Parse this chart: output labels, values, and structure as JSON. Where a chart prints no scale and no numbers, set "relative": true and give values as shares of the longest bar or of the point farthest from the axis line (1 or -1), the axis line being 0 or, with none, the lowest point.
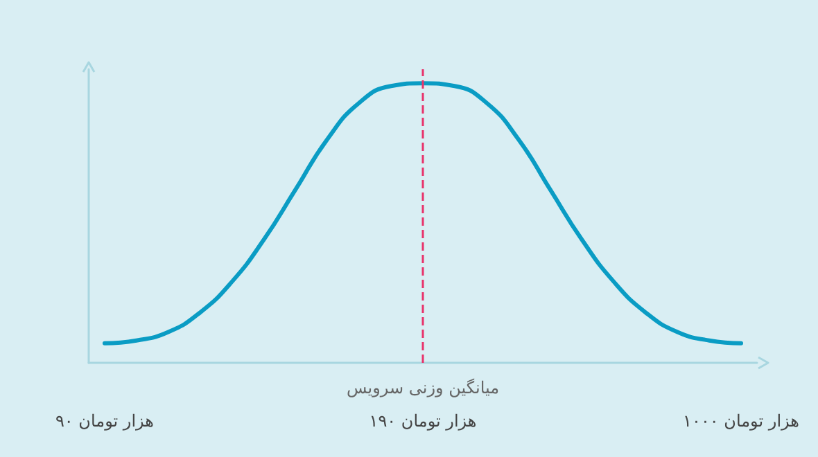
{
  "chart_data": {
    "type": "line",
    "relative": true,
    "marker": "none",
    "grid": false,
    "categories": [
      "۹۰ هزار تومان",
      null,
      null,
      null,
      null,
      null,
      null,
      null,
      null,
      null,
      "۱۹۰ هزار تومان",
      null,
      null,
      null,
      null,
      null,
      null,
      null,
      null,
      null,
      "۱۰۰۰ هزار تومان"
    ],
    "series": [
      {
        "color": "#0a9cc4",
        "values": [
          0.07,
          0.08,
          0.11,
          0.18,
          0.29,
          0.44,
          0.62,
          0.8,
          0.93,
          0.99,
          1,
          0.99,
          0.93,
          0.8,
          0.62,
          0.44,
          0.29,
          0.18,
          0.11,
          0.08,
          0.07
        ]
      }
    ],
    "ref_lines": [
      {
        "axis": "x",
        "value": "۱۹۰ هزار تومان",
        "label": "میانگین وزنی سرویس",
        "color": "#e8336b",
        "line_style": "dashed"
      }
    ]
  }
}
